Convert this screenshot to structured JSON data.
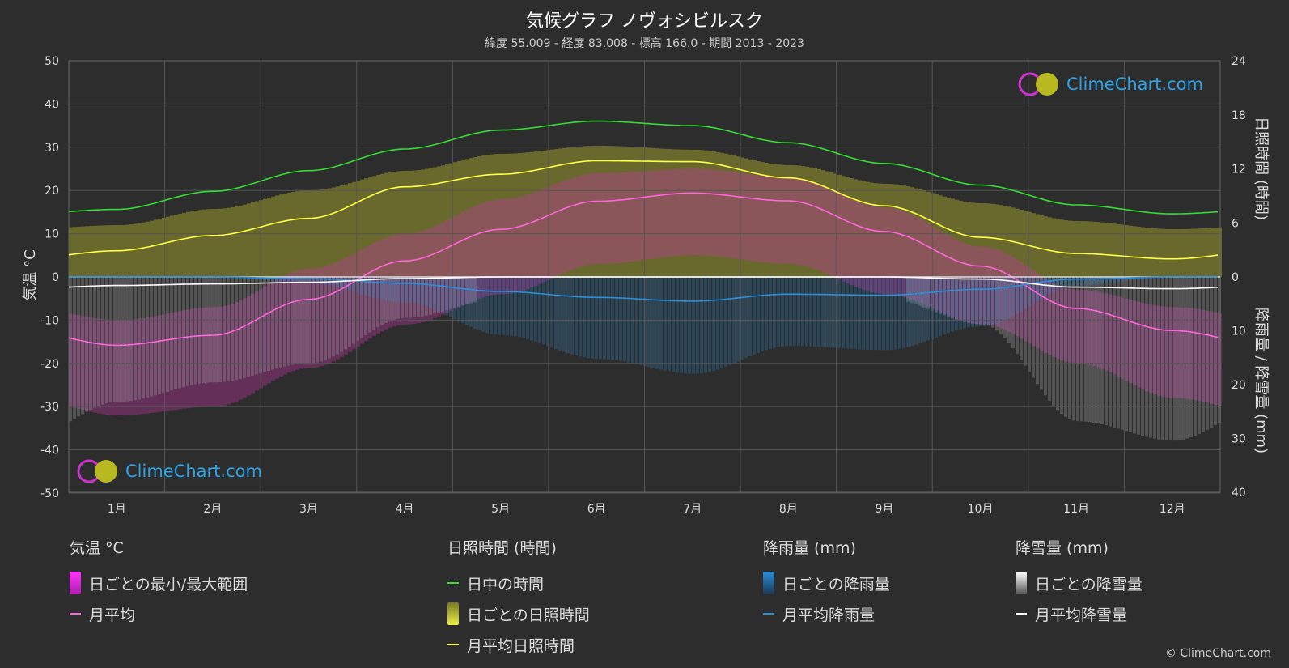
{
  "title": "気候グラフ ノヴォシビルスク",
  "subtitle": "緯度 55.009 - 経度 83.008 - 標高 166.0 - 期間 2013 - 2023",
  "axes": {
    "left_title": "気温 °C",
    "right_top_title": "日照時間 (時間)",
    "right_bottom_title": "降雨量 / 降雪量 (mm)"
  },
  "logo_text": "ClimeChart.com",
  "copyright": "© ClimeChart.com",
  "legend": {
    "temperature": {
      "header": "気温 °C",
      "range_label": "日ごとの最小/最大範囲",
      "avg_label": "月平均"
    },
    "sunshine": {
      "header": "日照時間 (時間)",
      "daylight_label": "日中の時間",
      "daily_label": "日ごとの日照時間",
      "avg_label": "月平均日照時間"
    },
    "rain": {
      "header": "降雨量 (mm)",
      "daily_label": "日ごとの降雨量",
      "avg_label": "月平均降雨量"
    },
    "snow": {
      "header": "降雪量 (mm)",
      "daily_label": "日ごとの降雪量",
      "avg_label": "月平均降雪量"
    }
  },
  "colors": {
    "background": "#2d2d2d",
    "daylight": "#33dd33",
    "sunshine_avg": "#ffff44",
    "sunshine_fill": "#9a9a30",
    "temp_avg": "#ff66dd",
    "temp_range": "#cc33aa",
    "rain": "#2b8fd8",
    "snow": "#ffffff",
    "logo": "#2ba3e8"
  },
  "chart_data": {
    "type": "line",
    "categories": [
      "1月",
      "2月",
      "3月",
      "4月",
      "5月",
      "6月",
      "7月",
      "8月",
      "9月",
      "10月",
      "11月",
      "12月"
    ],
    "left_axis": {
      "ticks": [
        50,
        40,
        30,
        20,
        10,
        0,
        -10,
        -20,
        -30,
        -40,
        -50
      ],
      "range": [
        -50,
        50
      ]
    },
    "right_top_axis": {
      "ticks": [
        24,
        18,
        12,
        6,
        0
      ],
      "range": [
        0,
        24
      ]
    },
    "right_bottom_axis": {
      "ticks": [
        0,
        10,
        20,
        30,
        40
      ],
      "range": [
        0,
        40
      ]
    },
    "series": [
      {
        "name": "日中の時間",
        "axis": "sunshine_hours",
        "values": [
          7.5,
          9.5,
          11.8,
          14.2,
          16.3,
          17.3,
          16.8,
          14.9,
          12.6,
          10.2,
          8.0,
          7.0
        ]
      },
      {
        "name": "月平均日照時間",
        "axis": "sunshine_hours",
        "values": [
          2.9,
          4.6,
          6.5,
          10.0,
          11.4,
          12.9,
          12.8,
          11.0,
          7.9,
          4.4,
          2.6,
          2.0
        ]
      },
      {
        "name": "月平均",
        "axis": "temperature_c",
        "values": [
          -15.8,
          -13.5,
          -5.2,
          3.7,
          11.0,
          17.5,
          19.4,
          17.6,
          10.5,
          2.5,
          -7.3,
          -12.4
        ]
      },
      {
        "name": "月平均降雨量",
        "axis": "precipitation_mm",
        "values": [
          0.0,
          0.0,
          0.3,
          1.2,
          2.7,
          3.8,
          4.5,
          3.2,
          3.4,
          2.3,
          0.4,
          0.0
        ]
      },
      {
        "name": "月平均降雪量",
        "axis": "precipitation_mm",
        "values": [
          1.6,
          1.3,
          1.0,
          0.3,
          0.0,
          0.0,
          0.0,
          0.0,
          0.0,
          0.4,
          1.9,
          2.2
        ]
      }
    ],
    "daily_temp_range": {
      "min": [
        -24,
        -22,
        -13,
        -3,
        4,
        11,
        13,
        11,
        4,
        -3,
        -12,
        -20
      ],
      "max": [
        -10,
        -7,
        2,
        10,
        18,
        24,
        25,
        23,
        16,
        7,
        -3,
        -7
      ]
    },
    "grid": true
  }
}
